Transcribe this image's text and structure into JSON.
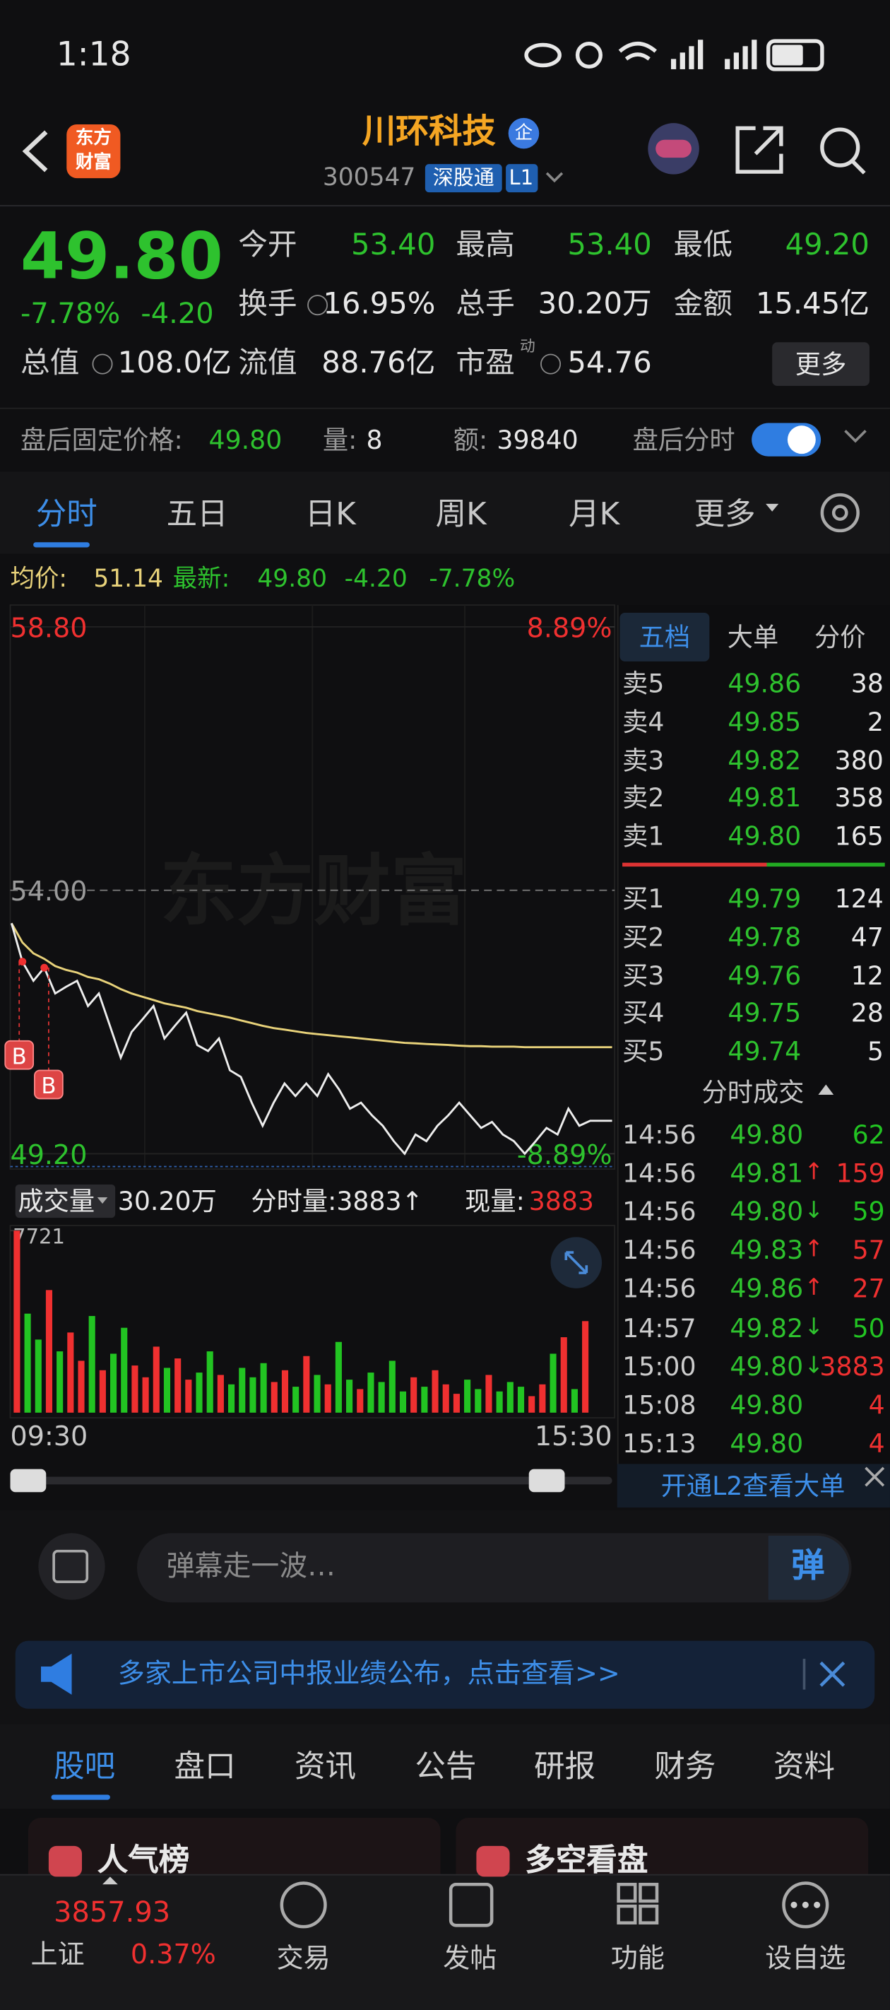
{
  "status": {
    "time": "1:18"
  },
  "header": {
    "logo": [
      "东方",
      "财富"
    ],
    "name": "川环科技",
    "badge": "企",
    "code": "300547",
    "tag": "深股通",
    "level": "L1"
  },
  "quote": {
    "price": "49.80",
    "change_pct": "-7.78%",
    "change": "-4.20",
    "more": "更多",
    "stats": [
      {
        "label": "今开",
        "value": "53.40",
        "color": "#2ec22e"
      },
      {
        "label": "最高",
        "value": "53.40",
        "color": "#2ec22e"
      },
      {
        "label": "最低",
        "value": "49.20",
        "color": "#2ec22e"
      },
      {
        "label": "换手",
        "value": "16.95%",
        "color": "#e8e8e8"
      },
      {
        "label": "总手",
        "value": "30.20万",
        "color": "#e8e8e8"
      },
      {
        "label": "金额",
        "value": "15.45亿",
        "color": "#e8e8e8"
      },
      {
        "label": "总值",
        "value": "108.0亿",
        "color": "#e8e8e8"
      },
      {
        "label": "流值",
        "value": "88.76亿",
        "color": "#e8e8e8"
      },
      {
        "label": "市盈",
        "sup": "动",
        "value": "54.76",
        "color": "#e8e8e8"
      }
    ]
  },
  "after_hours": {
    "price_label": "盘后固定价格:",
    "price": "49.80",
    "volume_label": "量:",
    "volume": "8",
    "amount_label": "额:",
    "amount": "39840",
    "toggle_label": "盘后分时"
  },
  "tabs": [
    "分时",
    "五日",
    "日K",
    "周K",
    "月K",
    "更多"
  ],
  "summary": {
    "avg_label": "均价:",
    "avg": "51.14",
    "last_label": "最新:",
    "last": "49.80",
    "change": "-4.20",
    "change_pct": "-7.78%"
  },
  "chart_data": [
    {
      "type": "line",
      "watermark": "东方财富",
      "markers": [
        "B",
        "B"
      ],
      "ylim": [
        49.2,
        58.8
      ],
      "yticks": [
        {
          "value": 58.8,
          "label": "58.80"
        },
        {
          "value": 54.0,
          "label": "54.00"
        },
        {
          "value": 49.2,
          "label": "49.20"
        }
      ],
      "y2lim": [
        -8.89,
        8.89
      ],
      "y2ticks": [
        {
          "value": 8.89,
          "label": "8.89%"
        },
        {
          "value": -8.89,
          "label": "-8.89%"
        }
      ],
      "series": [
        {
          "color": "#eeeeee",
          "values": [
            53.4,
            52.7,
            52.35,
            52.59,
            52.12,
            52.24,
            52.35,
            51.89,
            52.12,
            51.54,
            50.95,
            51.42,
            51.65,
            51.89,
            51.3,
            51.54,
            51.77,
            51.18,
            51.07,
            51.3,
            50.72,
            50.6,
            50.13,
            49.71,
            50.13,
            50.48,
            50.25,
            50.48,
            50.25,
            50.65,
            50.37,
            50.02,
            50.13,
            49.9,
            49.71,
            49.43,
            49.2,
            49.55,
            49.43,
            49.71,
            49.9,
            50.13,
            49.9,
            49.67,
            49.78,
            49.55,
            49.43,
            49.2,
            49.43,
            49.67,
            49.55,
            50.02,
            49.71,
            49.8,
            49.8,
            49.8
          ]
        },
        {
          "color": "#e8d27a",
          "values": [
            53.4,
            53.05,
            52.85,
            52.75,
            52.62,
            52.55,
            52.5,
            52.42,
            52.38,
            52.3,
            52.2,
            52.12,
            52.06,
            52.0,
            51.94,
            51.9,
            51.86,
            51.8,
            51.76,
            51.72,
            51.68,
            51.63,
            51.58,
            51.53,
            51.49,
            51.46,
            51.43,
            51.4,
            51.38,
            51.36,
            51.34,
            51.32,
            51.3,
            51.28,
            51.26,
            51.24,
            51.22,
            51.21,
            51.2,
            51.19,
            51.18,
            51.17,
            51.16,
            51.16,
            51.15,
            51.15,
            51.15,
            51.14,
            51.14,
            51.14,
            51.14,
            51.14,
            51.14,
            51.14,
            51.14,
            51.14
          ]
        }
      ]
    },
    {
      "type": "bar",
      "title": "成交量",
      "total": "30.20万",
      "period_label": "分时量:3883↑",
      "current_label": "现量:",
      "current": "3883",
      "ylim": [
        0,
        7721
      ],
      "yticks": [
        7721
      ],
      "x_labels": [
        "09:30",
        "15:30"
      ],
      "up_color": "#f03030",
      "down_color": "#22c422",
      "values": [
        7721,
        4200,
        3100,
        5200,
        2600,
        3400,
        2200,
        4100,
        1800,
        2500,
        3600,
        2000,
        1500,
        2800,
        1900,
        2300,
        1400,
        1700,
        2600,
        1600,
        1200,
        1900,
        1500,
        2100,
        1300,
        1800,
        1100,
        2400,
        1600,
        1200,
        3000,
        1400,
        1000,
        1700,
        1300,
        2200,
        900,
        1500,
        1100,
        1800,
        1200,
        800,
        1400,
        1000,
        1600,
        900,
        1300,
        1100,
        700,
        1200,
        2500,
        3200,
        1000,
        3883,
        0,
        0
      ]
    }
  ],
  "book": {
    "tabs": [
      "五档",
      "大单",
      "分价"
    ],
    "asks": [
      {
        "label": "卖5",
        "price": "49.86",
        "qty": "38"
      },
      {
        "label": "卖4",
        "price": "49.85",
        "qty": "2"
      },
      {
        "label": "卖3",
        "price": "49.82",
        "qty": "380"
      },
      {
        "label": "卖2",
        "price": "49.81",
        "qty": "358"
      },
      {
        "label": "卖1",
        "price": "49.80",
        "qty": "165"
      }
    ],
    "bids": [
      {
        "label": "买1",
        "price": "49.79",
        "qty": "124"
      },
      {
        "label": "买2",
        "price": "49.78",
        "qty": "47"
      },
      {
        "label": "买3",
        "price": "49.76",
        "qty": "12"
      },
      {
        "label": "买4",
        "price": "49.75",
        "qty": "28"
      },
      {
        "label": "买5",
        "price": "49.74",
        "qty": "5"
      }
    ]
  },
  "trades": {
    "title": "分时成交",
    "promo": "开通L2查看大单",
    "rows": [
      {
        "time": "14:56",
        "price": "49.80",
        "qty": "62",
        "color": "#22c422"
      },
      {
        "time": "14:56",
        "price": "49.81",
        "dir": "↑",
        "qty": "159",
        "color": "#f03030"
      },
      {
        "time": "14:56",
        "price": "49.80",
        "dir": "↓",
        "qty": "59",
        "color": "#22c422"
      },
      {
        "time": "14:56",
        "price": "49.83",
        "dir": "↑",
        "qty": "57",
        "color": "#f03030"
      },
      {
        "time": "14:56",
        "price": "49.86",
        "dir": "↑",
        "qty": "27",
        "color": "#f03030"
      },
      {
        "time": "14:57",
        "price": "49.82",
        "dir": "↓",
        "qty": "50",
        "color": "#22c422"
      },
      {
        "time": "15:00",
        "price": "49.80",
        "dir": "↓",
        "qty": "3883",
        "color": "#f03030"
      },
      {
        "time": "15:08",
        "price": "49.80",
        "qty": "4",
        "color": "#f03030"
      },
      {
        "time": "15:13",
        "price": "49.80",
        "qty": "4",
        "color": "#f03030"
      }
    ]
  },
  "danmaku": {
    "placeholder": "弹幕走一波…",
    "button": "弹"
  },
  "banner": "多家上市公司中报业绩公布，点击查看>>",
  "section_tabs": [
    "股吧",
    "盘口",
    "资讯",
    "公告",
    "研报",
    "财务",
    "资料"
  ],
  "cards": [
    "人气榜",
    "多空看盘"
  ],
  "nav": {
    "index_value": "3857.93",
    "index_name": "上证",
    "index_change": "0.37%",
    "items": [
      "交易",
      "发帖",
      "功能",
      "设自选"
    ]
  }
}
